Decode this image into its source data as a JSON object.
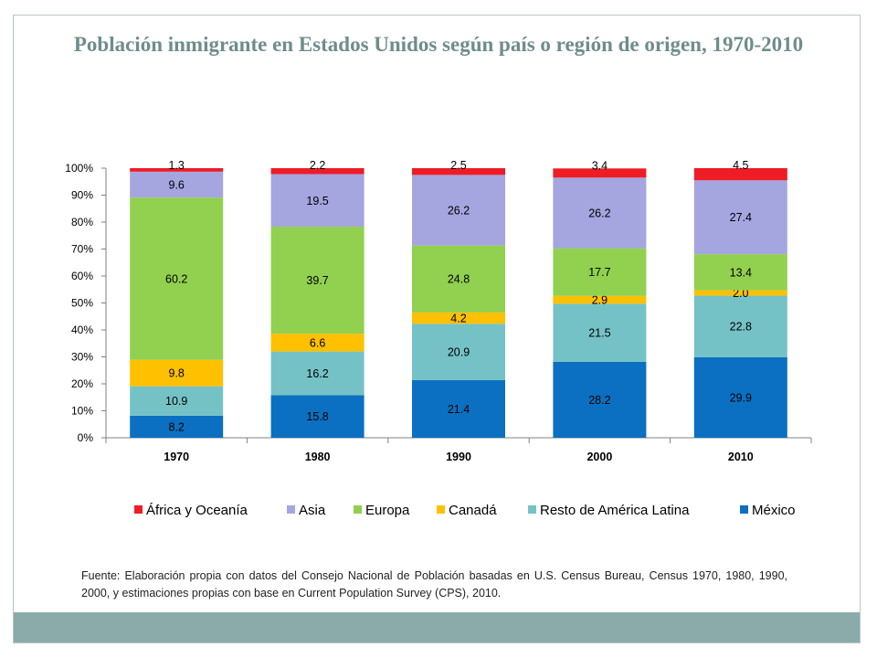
{
  "title": "Población inmigrante en Estados Unidos según país o región de origen, 1970-2010",
  "source_note": "Fuente: Elaboración propia con datos del Consejo Nacional de Población basadas en U.S. Census Bureau, Census 1970, 1980, 1990, 2000, y estimaciones propias con base en Current Population Survey (CPS), 2010.",
  "colors": {
    "africa_oceania": "#ee1c25",
    "asia": "#a5a5e0",
    "europa": "#92d050",
    "canada": "#ffc000",
    "resto_america_latina": "#75c2c6",
    "mexico": "#0b70c1",
    "frame": "#b8c6c6",
    "footer_bar": "#8aabaa",
    "title": "#6f8c8c"
  },
  "chart_data": {
    "type": "bar",
    "stacked": true,
    "title": "Población inmigrante en Estados Unidos según país o región de origen, 1970-2010",
    "xlabel": "",
    "ylabel": "",
    "categories": [
      "1970",
      "1980",
      "1990",
      "2000",
      "2010"
    ],
    "ylim": [
      0,
      100
    ],
    "y_ticks": [
      "0%",
      "10%",
      "20%",
      "30%",
      "40%",
      "50%",
      "60%",
      "70%",
      "80%",
      "90%",
      "100%"
    ],
    "legend_position": "bottom",
    "series": [
      {
        "name": "México",
        "color_key": "mexico",
        "values": [
          8.2,
          15.8,
          21.4,
          28.2,
          29.9
        ],
        "labels": [
          "8.2",
          "15.8",
          "21.4",
          "28.2",
          "29.9"
        ]
      },
      {
        "name": "Resto de América Latina",
        "color_key": "resto_america_latina",
        "values": [
          10.9,
          16.2,
          20.9,
          21.5,
          22.8
        ],
        "labels": [
          "10.9",
          "16.2",
          "20.9",
          "21.5",
          "22.8"
        ]
      },
      {
        "name": "Canadá",
        "color_key": "canada",
        "values": [
          9.8,
          6.6,
          4.2,
          2.9,
          2.0
        ],
        "labels": [
          "9.8",
          "6.6",
          "4.2",
          "2.9",
          "2.0"
        ]
      },
      {
        "name": "Europa",
        "color_key": "europa",
        "values": [
          60.2,
          39.7,
          24.8,
          17.7,
          13.4
        ],
        "labels": [
          "60.2",
          "39.7",
          "24.8",
          "17.7",
          "13.4"
        ]
      },
      {
        "name": "Asia",
        "color_key": "asia",
        "values": [
          9.6,
          19.5,
          26.2,
          26.2,
          27.4
        ],
        "labels": [
          "9.6",
          "19.5",
          "26.2",
          "26.2",
          "27.4"
        ]
      },
      {
        "name": "África y Oceanía",
        "color_key": "africa_oceania",
        "values": [
          1.3,
          2.2,
          2.5,
          3.4,
          4.5
        ],
        "labels": [
          "1.3",
          "2.2",
          "2.5",
          "3.4",
          "4.5"
        ]
      }
    ],
    "legend_order": [
      "África y Oceanía",
      "Asia",
      "Europa",
      "Canadá",
      "Resto de América Latina",
      "México"
    ]
  }
}
